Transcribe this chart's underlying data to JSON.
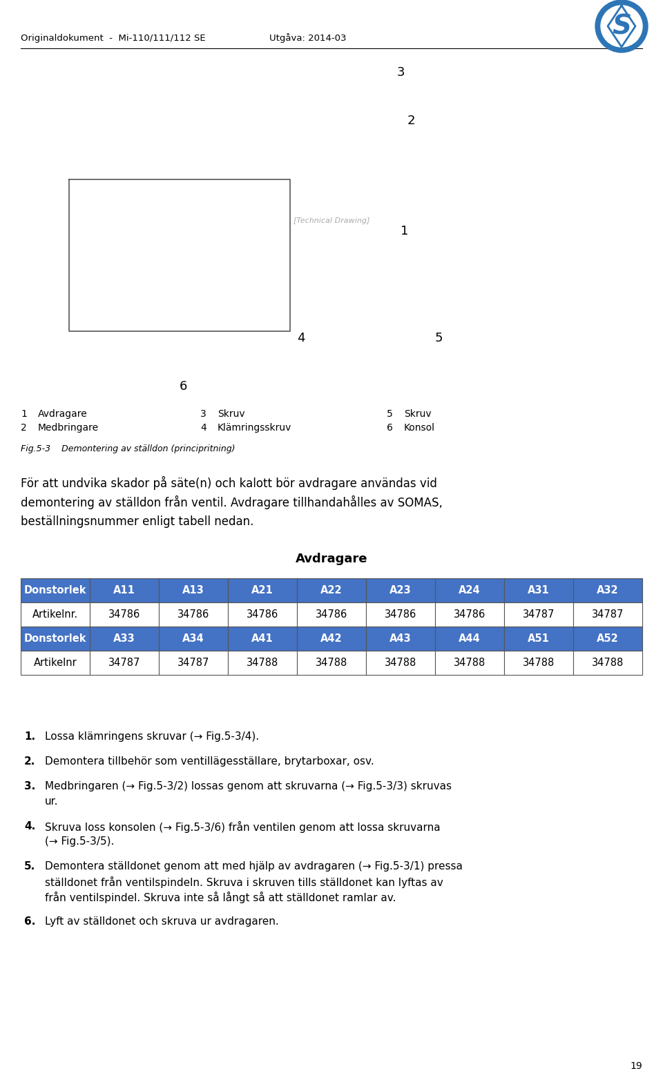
{
  "header_left": "Originaldokument  -  Mi-110/111/112 SE",
  "header_right": "Utgåva: 2014-03",
  "page_number": "19",
  "fig_caption": "Fig.5-3    Demontering av ställdon (principritning)",
  "legend_items": [
    [
      "1",
      "Avdragare",
      "3",
      "Skruv",
      "5",
      "Skruv"
    ],
    [
      "2",
      "Medbringare",
      "4",
      "Klämringsskruv",
      "6",
      "Konsol"
    ]
  ],
  "body_text": "För att undvika skador på säte(n) och kalott bör avdragare användas vid\ndemontering av ställdon från ventil. Avdragare tillhandahålles av SOMAS,\nbeställningsnummer enligt tabell nedan.",
  "table_title": "Avdragare",
  "table_header1": [
    "Donstorlek",
    "A11",
    "A13",
    "A21",
    "A22",
    "A23",
    "A24",
    "A31",
    "A32"
  ],
  "table_row1": [
    "Artikelnr.",
    "34786",
    "34786",
    "34786",
    "34786",
    "34786",
    "34786",
    "34787",
    "34787"
  ],
  "table_header2": [
    "Donstorlek",
    "A33",
    "A34",
    "A41",
    "A42",
    "A43",
    "A44",
    "A51",
    "A52"
  ],
  "table_row2": [
    "Artikelnr",
    "34787",
    "34787",
    "34788",
    "34788",
    "34788",
    "34788",
    "34788",
    "34788"
  ],
  "numbered_items": [
    "1. Lossa klämringens skruvar (→ Fig.5-3/4).",
    "2. Demontera tillbehör som ventillägesställare, brytarboxar, osv.",
    "3. Medbringaren (→ Fig.5-3/2) lossas genom att skruvarna (→ Fig.5-3/3) skruvas\n  ur.",
    "4. Skruva loss konsolen (→ Fig.5-3/6) från ventilen genom att lossa skruvarna\n  (→ Fig.5-3/5).",
    "5. Demontera ställdonet genom att med hjälp av avdragaren (→ Fig.5-3/1) pressa\n  ställdonet från ventilspindeln. Skruva i skruven tills ställdonet kan lyftas av\n  från ventilspindel. Skruva inte så långt så att ställdonet ramlar av.",
    "6. Lyft av ställdonet och skruva ur avdragaren."
  ],
  "header_color": "#000000",
  "table_header_bg": "#4472c4",
  "table_header_fg": "#ffffff",
  "table_row_bg": "#ffffff",
  "table_border": "#000000",
  "bg_color": "#ffffff"
}
